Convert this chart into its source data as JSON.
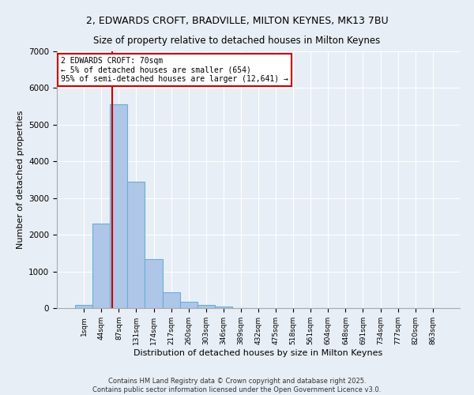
{
  "title_line1": "2, EDWARDS CROFT, BRADVILLE, MILTON KEYNES, MK13 7BU",
  "title_line2": "Size of property relative to detached houses in Milton Keynes",
  "xlabel": "Distribution of detached houses by size in Milton Keynes",
  "ylabel": "Number of detached properties",
  "footer_line1": "Contains HM Land Registry data © Crown copyright and database right 2025.",
  "footer_line2": "Contains public sector information licensed under the Open Government Licence v3.0.",
  "bar_labels": [
    "1sqm",
    "44sqm",
    "87sqm",
    "131sqm",
    "174sqm",
    "217sqm",
    "260sqm",
    "303sqm",
    "346sqm",
    "389sqm",
    "432sqm",
    "475sqm",
    "518sqm",
    "561sqm",
    "604sqm",
    "648sqm",
    "691sqm",
    "734sqm",
    "777sqm",
    "820sqm",
    "863sqm"
  ],
  "bar_values": [
    90,
    2300,
    5550,
    3450,
    1330,
    430,
    175,
    80,
    40,
    0,
    0,
    0,
    0,
    0,
    0,
    0,
    0,
    0,
    0,
    0,
    0
  ],
  "bar_color": "#aec6e8",
  "bar_edgecolor": "#6aaed6",
  "ylim": [
    0,
    7000
  ],
  "yticks": [
    0,
    1000,
    2000,
    3000,
    4000,
    5000,
    6000,
    7000
  ],
  "property_size_label": "2 EDWARDS CROFT: 70sqm",
  "annotation_smaller": "← 5% of detached houses are smaller (654)",
  "annotation_larger": "95% of semi-detached houses are larger (12,641) →",
  "vline_x": 1.62,
  "background_color": "#e8eef5",
  "plot_bg_color": "#e8eef5",
  "grid_color": "#ffffff",
  "annotation_border_color": "#cc0000",
  "vline_color": "#cc0000"
}
